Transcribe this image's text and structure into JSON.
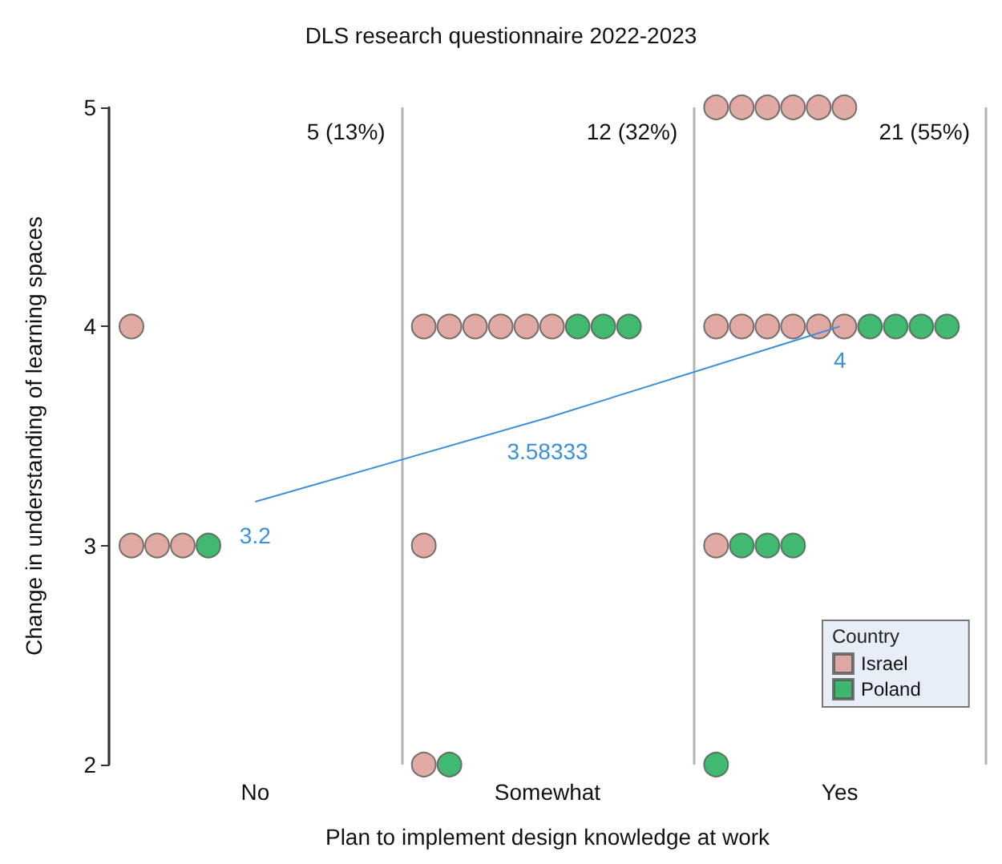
{
  "chart_data": {
    "type": "scatter",
    "title": "DLS research questionnaire 2022-2023",
    "xlabel": "Plan to implement design knowledge at work",
    "ylabel": "Change in understanding of learning spaces",
    "legend_title": "Country",
    "categories": [
      "No",
      "Somewhat",
      "Yes"
    ],
    "annotations": [
      "5 (13%)",
      "12 (32%)",
      "21 (55%)"
    ],
    "series": [
      {
        "name": "Israel",
        "color": "#d9958e",
        "x": [
          "No",
          "No",
          "No",
          "No",
          "Somewhat",
          "Somewhat",
          "Somewhat",
          "Somewhat",
          "Somewhat",
          "Somewhat",
          "Somewhat",
          "Somewhat",
          "Yes",
          "Yes",
          "Yes",
          "Yes",
          "Yes",
          "Yes",
          "Yes",
          "Yes",
          "Yes",
          "Yes",
          "Yes",
          "Yes",
          "Yes"
        ],
        "values": [
          4,
          3,
          3,
          3,
          4,
          4,
          4,
          4,
          4,
          4,
          3,
          2,
          5,
          5,
          5,
          5,
          5,
          5,
          4,
          4,
          4,
          4,
          4,
          4,
          3
        ]
      },
      {
        "name": "Poland",
        "color": "#12a84c",
        "x": [
          "No",
          "Somewhat",
          "Somewhat",
          "Somewhat",
          "Somewhat",
          "Yes",
          "Yes",
          "Yes",
          "Yes",
          "Yes",
          "Yes",
          "Yes",
          "Yes"
        ],
        "values": [
          3,
          4,
          4,
          4,
          2,
          4,
          4,
          4,
          4,
          3,
          3,
          3,
          2
        ]
      },
      {
        "type": "line",
        "color": "#3d8fd8",
        "marker": "none",
        "x": [
          "No",
          "Somewhat",
          "Yes"
        ],
        "values": [
          3.2,
          3.58333,
          4
        ],
        "value_labels": [
          "3.2",
          "3.58333",
          "4"
        ]
      }
    ],
    "ylim": [
      2,
      5
    ],
    "yticks": [
      2,
      3,
      4,
      5
    ],
    "grid": "x",
    "legend": "bottom right",
    "marker": "circle"
  }
}
